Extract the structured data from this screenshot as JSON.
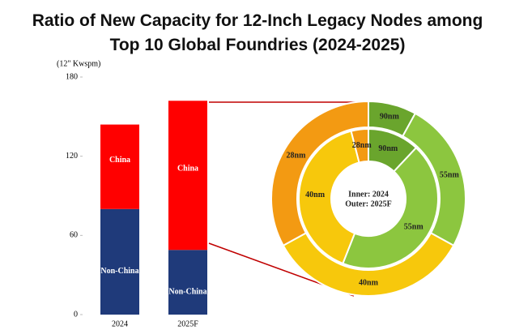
{
  "title": [
    "Ratio of New Capacity for 12-Inch Legacy Nodes among",
    "Top 10 Global Foundries (2024-2025)"
  ],
  "chart_data": [
    {
      "type": "stacked-bar",
      "y_label": "(12\" Kwspm)",
      "categories": [
        "2024",
        "2025F"
      ],
      "series": [
        {
          "name": "Non-China",
          "color": "#1f3a7a",
          "values": [
            80,
            49
          ]
        },
        {
          "name": "China",
          "color": "#ff0000",
          "values": [
            64,
            113
          ]
        }
      ],
      "ylim": [
        0,
        180
      ],
      "yticks": [
        0,
        60,
        120,
        180
      ]
    },
    {
      "type": "donut",
      "categories": [
        "90nm",
        "55nm",
        "40nm",
        "28nm"
      ],
      "colors": [
        "#6aa52d",
        "#8cc63f",
        "#f7c80c",
        "#f39a12"
      ],
      "series": [
        {
          "name": "Inner: 2024",
          "values": [
            12,
            44,
            40,
            4
          ]
        },
        {
          "name": "Outer: 2025F",
          "values": [
            8,
            25,
            34,
            33
          ]
        }
      ]
    }
  ]
}
